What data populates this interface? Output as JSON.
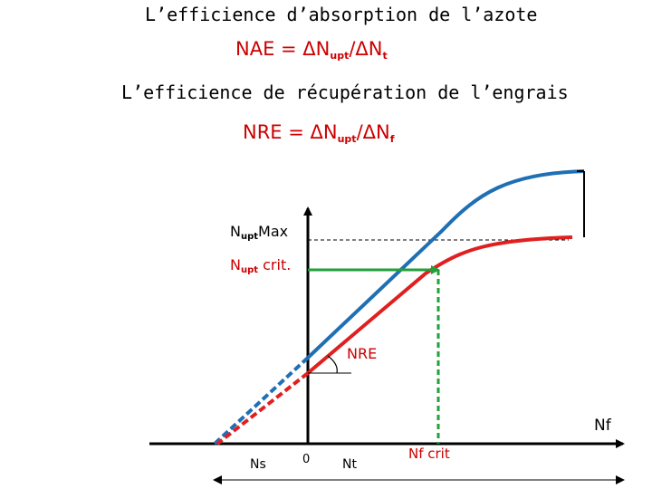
{
  "titles": {
    "nae_title": "L’efficience d’absorption de l’azote",
    "nre_title": "L’efficience de récupération de l’engrais"
  },
  "formulas": {
    "nae": {
      "lhs": "NAE = ",
      "num": "ΔN",
      "num_sub": "upt",
      "sep": "/ΔN",
      "den_sub": "t"
    },
    "nre": {
      "lhs": "NRE = ",
      "num": "ΔN",
      "num_sub": "upt",
      "sep": "/ΔN",
      "den_sub": "f"
    }
  },
  "labels": {
    "nupt_max": {
      "main": "N",
      "sub": "upt",
      "rest": "Max"
    },
    "nupt_crit": {
      "main": "N",
      "sub": "upt",
      "rest": " crit."
    },
    "nre": "NRE",
    "nf": "Nf",
    "ns": "Ns",
    "zero": "0",
    "nt": "Nt",
    "nf_crit": "Nf crit"
  },
  "colors": {
    "blue_curve": "#1f6fb4",
    "red_curve": "#e02020",
    "green_lines": "#22a03a",
    "axis": "#000000",
    "formula_text": "#cc0000"
  }
}
